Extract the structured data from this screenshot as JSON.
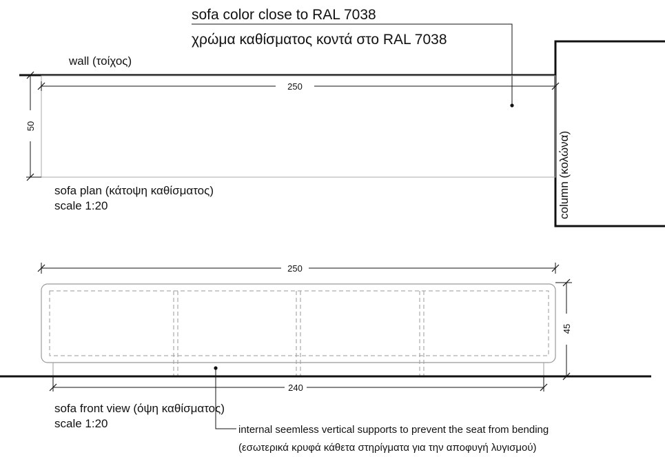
{
  "annotations": {
    "color_note_en": "sofa color close to RAL 7038",
    "color_note_el": "χρώμα καθίσματος κοντά στο RAL 7038",
    "wall": "wall (τοίχος)",
    "column": "column (κολώνα)",
    "plan_title": "sofa plan (κάτοψη καθίσματος)",
    "plan_scale": "scale 1:20",
    "front_title": "sofa front view (όψη καθίσματος)",
    "front_scale": "scale 1:20",
    "supports_en": "internal seemless vertical supports to prevent the seat from bending",
    "supports_el": "(εσωτερικά κρυφά κάθετα στηρίγματα για την αποφυγή λυγισμού)"
  },
  "dimensions": {
    "plan_length": "250",
    "plan_depth": "50",
    "front_length": "250",
    "front_height": "45",
    "base_length": "240"
  }
}
